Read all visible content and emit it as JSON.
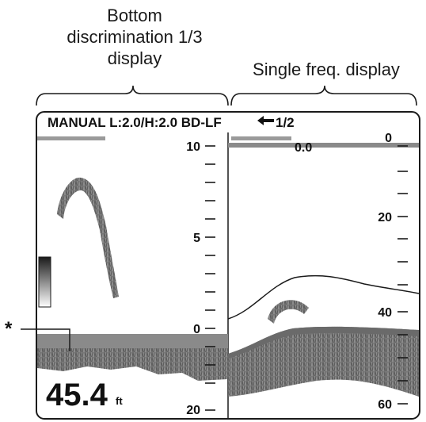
{
  "captions": {
    "left": [
      "Bottom",
      "discrimination 1/3",
      "display"
    ],
    "right": "Single freq. display"
  },
  "header": {
    "mode": "MANUAL L:2.0/H:2.0 BD-LF",
    "page": "1/2"
  },
  "left_scale": {
    "labels": [
      "10",
      "5",
      "0",
      "20"
    ]
  },
  "right_scale": {
    "labels": [
      "0",
      "20",
      "40",
      "60"
    ]
  },
  "range_start": "0.0",
  "depth": {
    "value": "45.4",
    "unit": "ft"
  },
  "annotation": "*",
  "colors": {
    "frame": "#1a1a1a",
    "echo": "#8a8a8a",
    "bottom": "#7a7a7a",
    "bar": "#9a9a9a"
  }
}
